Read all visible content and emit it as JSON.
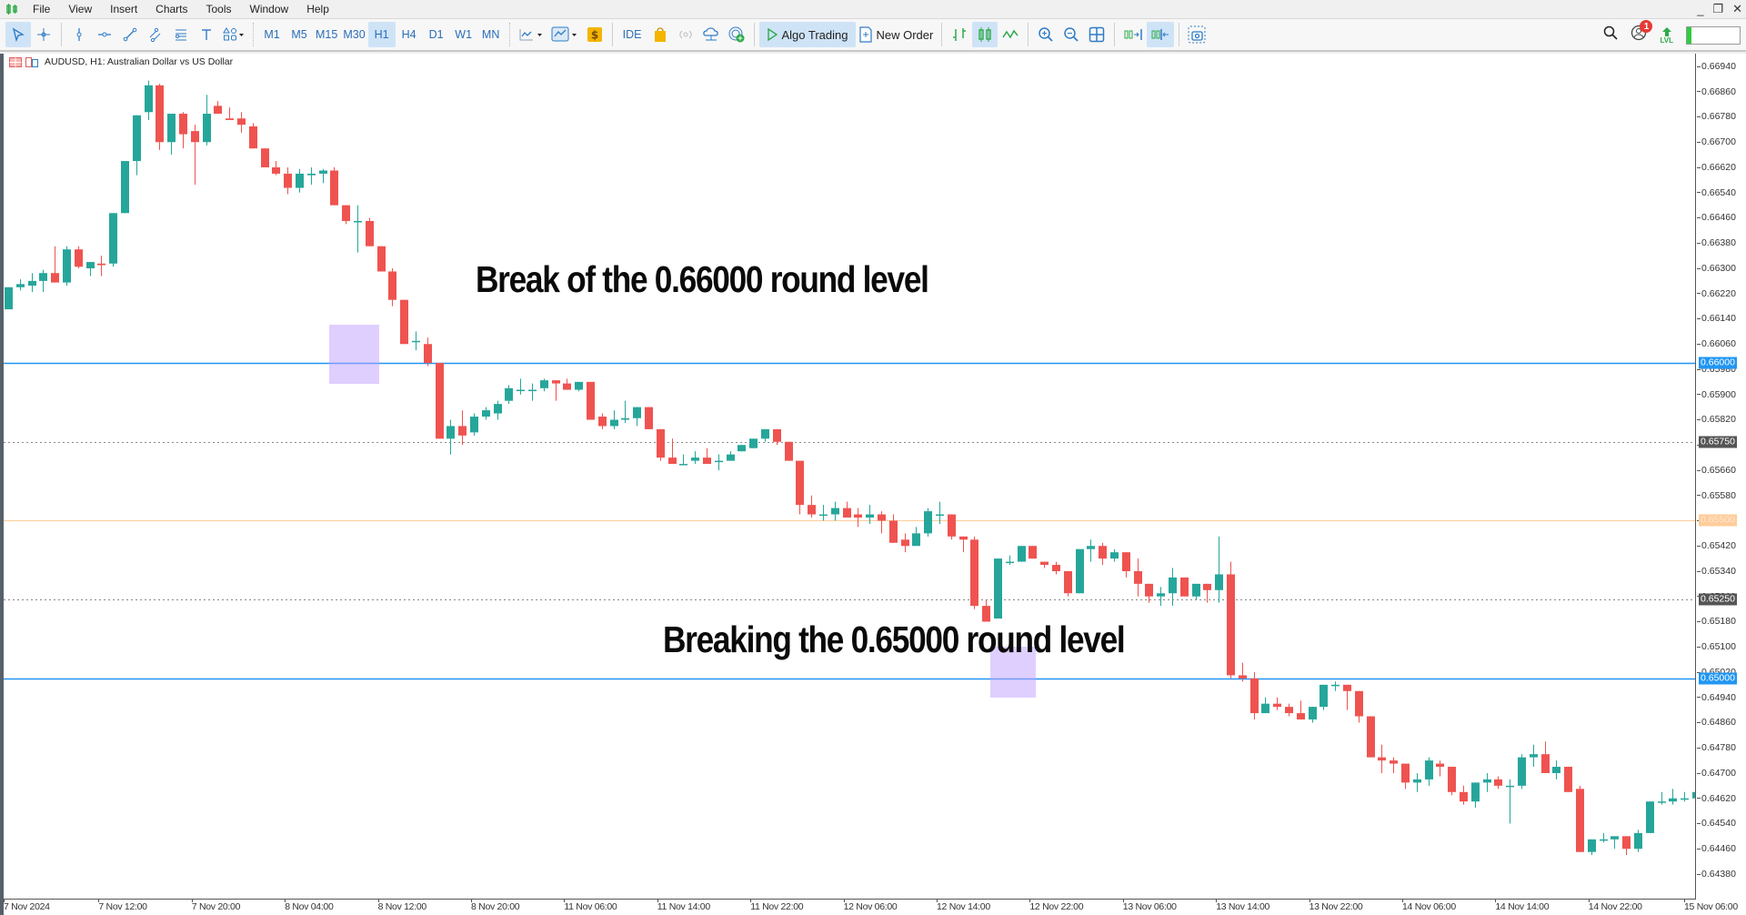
{
  "menu": {
    "items": [
      "File",
      "View",
      "Insert",
      "Charts",
      "Tools",
      "Window",
      "Help"
    ]
  },
  "window_controls": {
    "minimize": "_",
    "restore": "❐",
    "close": "✕"
  },
  "toolbar": {
    "timeframes": [
      "M1",
      "M5",
      "M15",
      "M30",
      "H1",
      "H4",
      "D1",
      "W1",
      "MN"
    ],
    "active_timeframe": "H1",
    "ide_label": "IDE",
    "algo_trading_label": "Algo Trading",
    "new_order_label": "New Order",
    "notification_count": "1",
    "level_label": "LVL"
  },
  "chart": {
    "title": "AUDUSD, H1:  Australian Dollar vs US Dollar",
    "symbol": "AUDUSD",
    "timeframe": "H1",
    "description": "Australian Dollar vs US Dollar"
  },
  "colors": {
    "bull": "#26a69a",
    "bear": "#ef5350",
    "round_level_line": "#2196f3",
    "dotted_level_line": "#888888",
    "orange_level_line": "#ffcc99",
    "highlight_box": "#c8b4ff",
    "price_label_dark": "#555555"
  },
  "annotations": [
    {
      "text": "Break of the 0.66000 round level",
      "price": 0.66
    },
    {
      "text": "Breaking the 0.65000 round level",
      "price": 0.65
    }
  ],
  "chart_data": {
    "type": "candlestick",
    "title": "AUDUSD, H1: Australian Dollar vs US Dollar",
    "xlabel": "",
    "ylabel": "",
    "ylim": [
      0.6434,
      0.6698
    ],
    "grid": false,
    "y_ticks": [
      "0.66940",
      "0.66860",
      "0.66780",
      "0.66700",
      "0.66620",
      "0.66540",
      "0.66460",
      "0.66380",
      "0.66300",
      "0.66220",
      "0.66140",
      "0.66060",
      "0.65980",
      "0.65900",
      "0.65820",
      "0.65740",
      "0.65660",
      "0.65580",
      "0.65500",
      "0.65420",
      "0.65340",
      "0.65260",
      "0.65180",
      "0.65100",
      "0.65020",
      "0.64940",
      "0.64860",
      "0.64780",
      "0.64700",
      "0.64620",
      "0.64540",
      "0.64460",
      "0.64380"
    ],
    "x_ticks": [
      {
        "label": "7 Nov 2024",
        "bar": 0
      },
      {
        "label": "7 Nov 12:00",
        "bar": 8
      },
      {
        "label": "7 Nov 20:00",
        "bar": 16
      },
      {
        "label": "8 Nov 04:00",
        "bar": 24
      },
      {
        "label": "8 Nov 12:00",
        "bar": 32
      },
      {
        "label": "8 Nov 20:00",
        "bar": 40
      },
      {
        "label": "11 Nov 06:00",
        "bar": 48
      },
      {
        "label": "11 Nov 14:00",
        "bar": 56
      },
      {
        "label": "11 Nov 22:00",
        "bar": 64
      },
      {
        "label": "12 Nov 06:00",
        "bar": 72
      },
      {
        "label": "12 Nov 14:00",
        "bar": 80
      },
      {
        "label": "12 Nov 22:00",
        "bar": 88
      },
      {
        "label": "13 Nov 06:00",
        "bar": 96
      },
      {
        "label": "13 Nov 14:00",
        "bar": 104
      },
      {
        "label": "13 Nov 22:00",
        "bar": 112
      },
      {
        "label": "14 Nov 06:00",
        "bar": 120
      },
      {
        "label": "14 Nov 14:00",
        "bar": 128
      },
      {
        "label": "14 Nov 22:00",
        "bar": 136
      },
      {
        "label": "15 Nov 06:00",
        "bar": 144
      }
    ],
    "horizontal_levels": [
      {
        "price": 0.66,
        "label": "0.66000",
        "style": "solid",
        "color": "#2196f3"
      },
      {
        "price": 0.6575,
        "label": "0.65750",
        "style": "dotted",
        "color": "#888888"
      },
      {
        "price": 0.655,
        "label": "0.65500",
        "style": "solid",
        "color": "#ffcc99"
      },
      {
        "price": 0.6525,
        "label": "0.65250",
        "style": "dotted",
        "color": "#888888"
      },
      {
        "price": 0.65,
        "label": "0.65000",
        "style": "solid",
        "color": "#2196f3"
      }
    ],
    "highlight_boxes": [
      {
        "bar_start": 27.6,
        "bar_end": 31.9,
        "price_top": 0.6612,
        "price_bottom": 0.65935
      },
      {
        "bar_start": 84.4,
        "bar_end": 88.3,
        "price_top": 0.651,
        "price_bottom": 0.6494
      }
    ],
    "bar_spacing_px": 12.8,
    "first_bar_x": 5,
    "ohlc": [
      {
        "o": 0.6617,
        "h": 0.6623,
        "l": 0.6617,
        "c": 0.6624
      },
      {
        "o": 0.6624,
        "h": 0.66265,
        "l": 0.6623,
        "c": 0.6625
      },
      {
        "o": 0.66245,
        "h": 0.66285,
        "l": 0.66225,
        "c": 0.6626
      },
      {
        "o": 0.6626,
        "h": 0.66295,
        "l": 0.66225,
        "c": 0.66285
      },
      {
        "o": 0.66285,
        "h": 0.6637,
        "l": 0.6626,
        "c": 0.66255
      },
      {
        "o": 0.66255,
        "h": 0.6637,
        "l": 0.66245,
        "c": 0.6636
      },
      {
        "o": 0.6636,
        "h": 0.6637,
        "l": 0.663,
        "c": 0.66305
      },
      {
        "o": 0.663,
        "h": 0.6632,
        "l": 0.66275,
        "c": 0.6632
      },
      {
        "o": 0.66315,
        "h": 0.6634,
        "l": 0.66275,
        "c": 0.6631
      },
      {
        "o": 0.66315,
        "h": 0.66475,
        "l": 0.66305,
        "c": 0.66475
      },
      {
        "o": 0.66475,
        "h": 0.6664,
        "l": 0.66475,
        "c": 0.6664
      },
      {
        "o": 0.6664,
        "h": 0.66785,
        "l": 0.66595,
        "c": 0.66785
      },
      {
        "o": 0.66795,
        "h": 0.66895,
        "l": 0.6677,
        "c": 0.6688
      },
      {
        "o": 0.6688,
        "h": 0.66885,
        "l": 0.66675,
        "c": 0.667
      },
      {
        "o": 0.667,
        "h": 0.6679,
        "l": 0.6666,
        "c": 0.6679
      },
      {
        "o": 0.6679,
        "h": 0.66795,
        "l": 0.6668,
        "c": 0.66725
      },
      {
        "o": 0.66735,
        "h": 0.66755,
        "l": 0.66565,
        "c": 0.667
      },
      {
        "o": 0.667,
        "h": 0.6685,
        "l": 0.6669,
        "c": 0.6679
      },
      {
        "o": 0.66815,
        "h": 0.6683,
        "l": 0.6679,
        "c": 0.6679
      },
      {
        "o": 0.66775,
        "h": 0.6681,
        "l": 0.6677,
        "c": 0.6677
      },
      {
        "o": 0.66775,
        "h": 0.66795,
        "l": 0.6673,
        "c": 0.66755
      },
      {
        "o": 0.6675,
        "h": 0.6676,
        "l": 0.6668,
        "c": 0.6668
      },
      {
        "o": 0.6668,
        "h": 0.6668,
        "l": 0.6662,
        "c": 0.6662
      },
      {
        "o": 0.6662,
        "h": 0.6664,
        "l": 0.66595,
        "c": 0.666
      },
      {
        "o": 0.666,
        "h": 0.6662,
        "l": 0.66535,
        "c": 0.66555
      },
      {
        "o": 0.66555,
        "h": 0.66615,
        "l": 0.6654,
        "c": 0.666
      },
      {
        "o": 0.66595,
        "h": 0.6662,
        "l": 0.66565,
        "c": 0.666
      },
      {
        "o": 0.666,
        "h": 0.66615,
        "l": 0.6657,
        "c": 0.6661
      }
    ],
    "ohlc_continued_note_removed": true
  }
}
